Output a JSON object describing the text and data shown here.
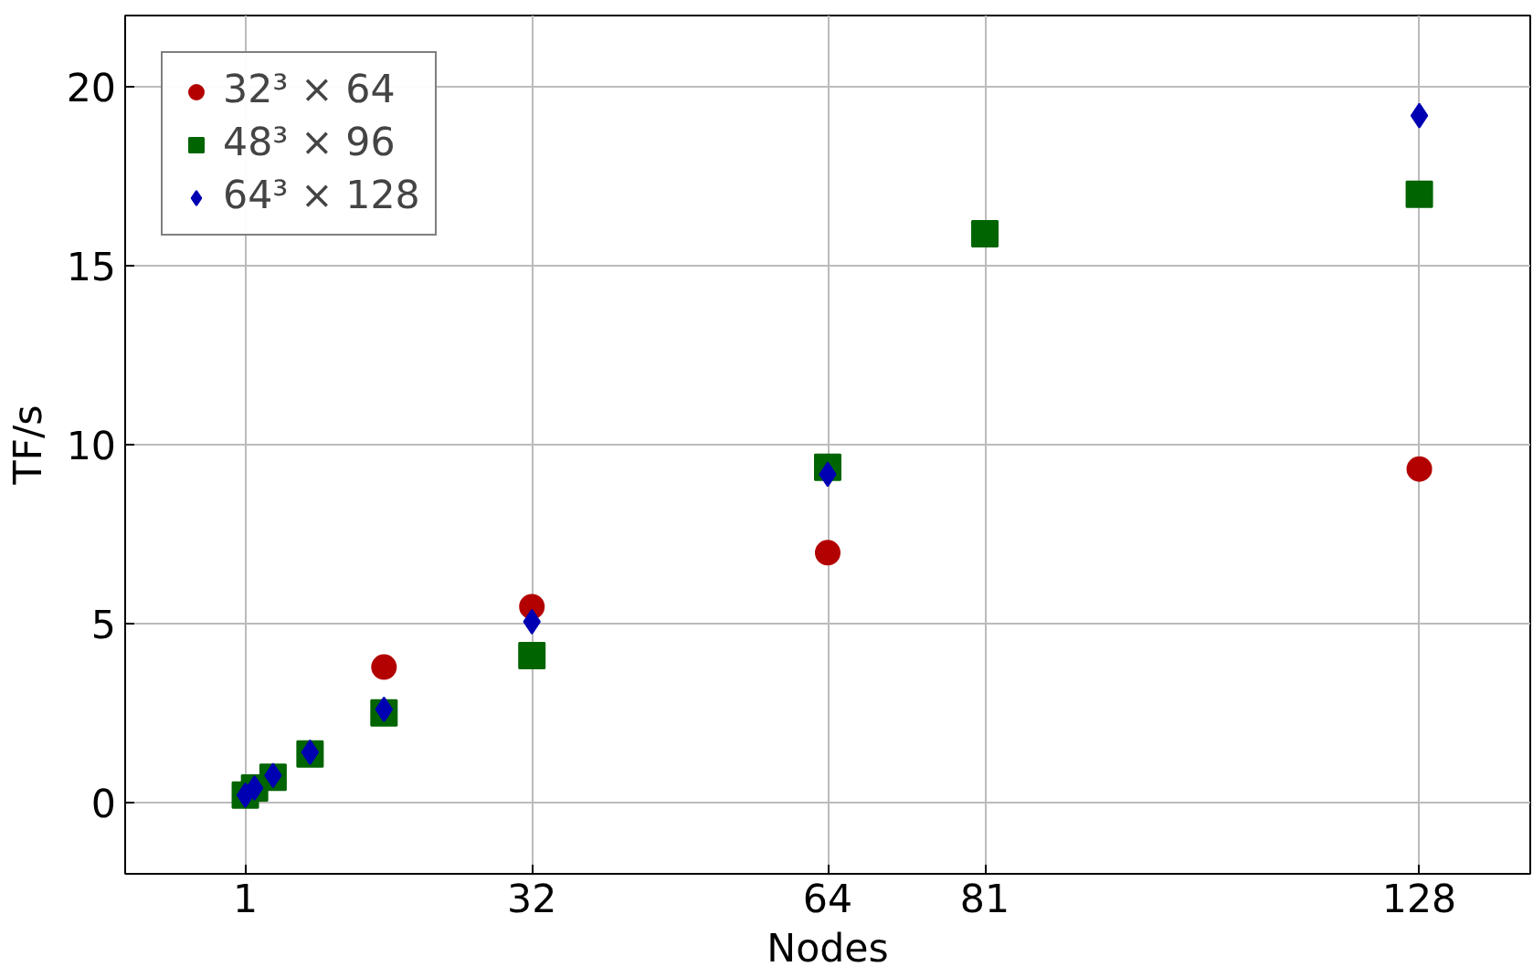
{
  "chart_data": {
    "type": "scatter",
    "xlabel": "Nodes",
    "ylabel": "TF/s",
    "xlim": [
      -12,
      140
    ],
    "ylim": [
      -2,
      22
    ],
    "xticks": [
      1,
      32,
      64,
      81,
      128
    ],
    "yticks": [
      0,
      5,
      10,
      15,
      20
    ],
    "grid": true,
    "legend": "top left",
    "series": [
      {
        "name": "32³ × 64",
        "color": "#b30000",
        "marker": "circle",
        "x": [
          16,
          32,
          64,
          128
        ],
        "values": [
          3.78,
          5.47,
          6.98,
          9.32
        ]
      },
      {
        "name": "48³ × 96",
        "color": "#006400",
        "marker": "square",
        "x": [
          1,
          2,
          4,
          8,
          16,
          32,
          64,
          81,
          128
        ],
        "values": [
          0.2,
          0.4,
          0.7,
          1.35,
          2.5,
          4.1,
          9.37,
          15.9,
          17.0
        ]
      },
      {
        "name": "64³ × 128",
        "color": "#0000b3",
        "marker": "diamond",
        "x": [
          1,
          2,
          4,
          8,
          16,
          32,
          64,
          128
        ],
        "values": [
          0.2,
          0.4,
          0.75,
          1.4,
          2.6,
          5.05,
          9.17,
          19.2
        ]
      }
    ]
  }
}
